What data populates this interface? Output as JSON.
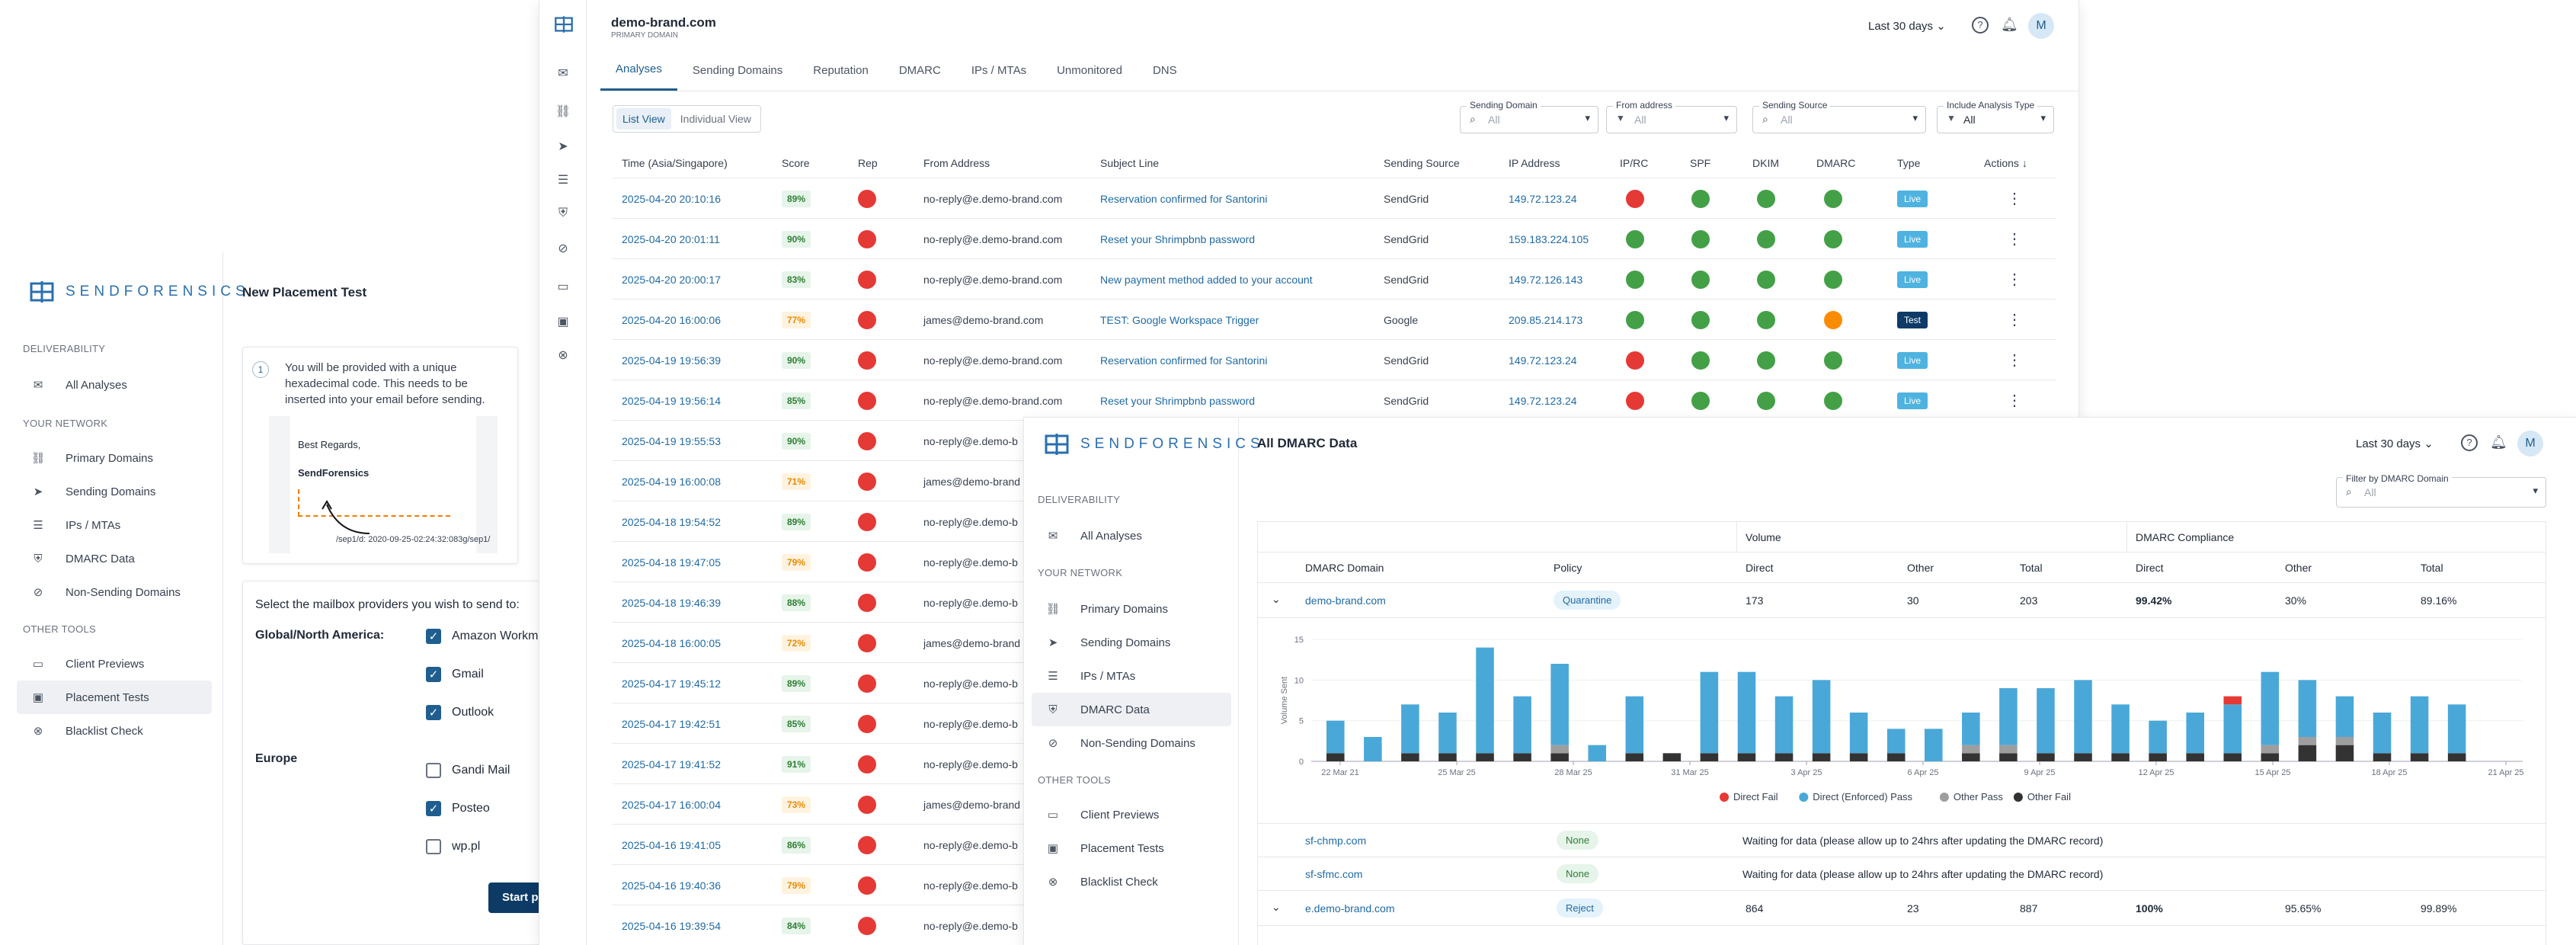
{
  "left_sidebar": {
    "brand": "SENDFORENSICS",
    "sections": [
      {
        "label": "DELIVERABILITY",
        "items": [
          {
            "label": "All Analyses",
            "icon": "mail-icon"
          }
        ]
      },
      {
        "label": "YOUR NETWORK",
        "items": [
          {
            "label": "Primary Domains",
            "icon": "network-icon"
          },
          {
            "label": "Sending Domains",
            "icon": "send-icon"
          },
          {
            "label": "IPs / MTAs",
            "icon": "list-icon"
          },
          {
            "label": "DMARC Data",
            "icon": "shield-icon"
          },
          {
            "label": "Non-Sending Domains",
            "icon": "send-off-icon"
          }
        ]
      },
      {
        "label": "OTHER TOOLS",
        "items": [
          {
            "label": "Client Previews",
            "icon": "monitor-icon"
          },
          {
            "label": "Placement Tests",
            "icon": "inbox-icon"
          },
          {
            "label": "Blacklist Check",
            "icon": "block-icon"
          }
        ]
      }
    ]
  },
  "placement": {
    "title": "New Placement Test",
    "step": "1",
    "instruction": "You will be provided with a unique hexadecimal code. This needs to be inserted into your email before sending.",
    "preview_regards": "Best Regards,",
    "preview_sender": "SendForensics",
    "preview_code": "/sep1/d: 2020-09-25-02:24:32:083g/sep1/",
    "select_label": "Select the mailbox providers you wish to send to:",
    "groups": [
      {
        "name": "Global/North America:",
        "providers": [
          {
            "label": "Amazon Workm",
            "checked": true
          },
          {
            "label": "Gmail",
            "checked": true
          },
          {
            "label": "Outlook",
            "checked": true
          }
        ]
      },
      {
        "name": "Europe",
        "providers": [
          {
            "label": "Gandi Mail",
            "checked": false
          },
          {
            "label": "Posteo",
            "checked": true
          },
          {
            "label": "wp.pl",
            "checked": false
          }
        ]
      }
    ],
    "start_button": "Start p"
  },
  "analyses": {
    "domain": "demo-brand.com",
    "domain_sub": "PRIMARY DOMAIN",
    "range": "Last 30 days",
    "avatar": "M",
    "tabs": [
      "Analyses",
      "Sending Domains",
      "Reputation",
      "DMARC",
      "IPs / MTAs",
      "Unmonitored",
      "DNS"
    ],
    "views": [
      "List View",
      "Individual View"
    ],
    "filters": [
      {
        "label": "Sending Domain",
        "value": "All"
      },
      {
        "label": "From address",
        "value": "All"
      },
      {
        "label": "Sending Source",
        "value": "All"
      },
      {
        "label": "Include Analysis Type",
        "value": "All"
      }
    ],
    "columns": [
      "Time (Asia/Singapore)",
      "Score",
      "Rep",
      "From Address",
      "Subject Line",
      "Sending Source",
      "IP Address",
      "IP/RC",
      "SPF",
      "DKIM",
      "DMARC",
      "Type",
      "Actions"
    ],
    "rows": [
      {
        "time": "2025-04-20 20:10:16",
        "score": "89%",
        "from": "no-reply@e.demo-brand.com",
        "subject": "Reservation confirmed for Santorini",
        "source": "SendGrid",
        "ip": "149.72.123.24",
        "iprc": "red",
        "spf": "grn",
        "dkim": "grn",
        "dmarc": "grn",
        "type": "Live"
      },
      {
        "time": "2025-04-20 20:01:11",
        "score": "90%",
        "from": "no-reply@e.demo-brand.com",
        "subject": "Reset your Shrimpbnb password",
        "source": "SendGrid",
        "ip": "159.183.224.105",
        "iprc": "grn",
        "spf": "grn",
        "dkim": "grn",
        "dmarc": "grn",
        "type": "Live"
      },
      {
        "time": "2025-04-20 20:00:17",
        "score": "83%",
        "from": "no-reply@e.demo-brand.com",
        "subject": "New payment method added to your account",
        "source": "SendGrid",
        "ip": "149.72.126.143",
        "iprc": "grn",
        "spf": "grn",
        "dkim": "grn",
        "dmarc": "grn",
        "type": "Live"
      },
      {
        "time": "2025-04-20 16:00:06",
        "score": "77%",
        "from": "james@demo-brand.com",
        "subject": "TEST: Google Workspace Trigger",
        "source": "Google",
        "ip": "209.85.214.173",
        "iprc": "grn",
        "spf": "grn",
        "dkim": "grn",
        "dmarc": "org",
        "type": "Test"
      },
      {
        "time": "2025-04-19 19:56:39",
        "score": "90%",
        "from": "no-reply@e.demo-brand.com",
        "subject": "Reservation confirmed for Santorini",
        "source": "SendGrid",
        "ip": "149.72.123.24",
        "iprc": "red",
        "spf": "grn",
        "dkim": "grn",
        "dmarc": "grn",
        "type": "Live"
      },
      {
        "time": "2025-04-19 19:56:14",
        "score": "85%",
        "from": "no-reply@e.demo-brand.com",
        "subject": "Reset your Shrimpbnb password",
        "source": "SendGrid",
        "ip": "149.72.123.24",
        "iprc": "red",
        "spf": "grn",
        "dkim": "grn",
        "dmarc": "grn",
        "type": "Live"
      },
      {
        "time": "2025-04-19 19:55:53",
        "score": "90%",
        "from": "no-reply@e.demo-b"
      },
      {
        "time": "2025-04-19 16:00:08",
        "score": "71%",
        "from": "james@demo-brand"
      },
      {
        "time": "2025-04-18 19:54:52",
        "score": "89%",
        "from": "no-reply@e.demo-b"
      },
      {
        "time": "2025-04-18 19:47:05",
        "score": "79%",
        "from": "no-reply@e.demo-b"
      },
      {
        "time": "2025-04-18 19:46:39",
        "score": "88%",
        "from": "no-reply@e.demo-b"
      },
      {
        "time": "2025-04-18 16:00:05",
        "score": "72%",
        "from": "james@demo-brand"
      },
      {
        "time": "2025-04-17 19:45:12",
        "score": "89%",
        "from": "no-reply@e.demo-b"
      },
      {
        "time": "2025-04-17 19:42:51",
        "score": "85%",
        "from": "no-reply@e.demo-b"
      },
      {
        "time": "2025-04-17 19:41:52",
        "score": "91%",
        "from": "no-reply@e.demo-b"
      },
      {
        "time": "2025-04-17 16:00:04",
        "score": "73%",
        "from": "james@demo-brand"
      },
      {
        "time": "2025-04-16 19:41:05",
        "score": "86%",
        "from": "no-reply@e.demo-b"
      },
      {
        "time": "2025-04-16 19:40:36",
        "score": "79%",
        "from": "no-reply@e.demo-b"
      },
      {
        "time": "2025-04-16 19:39:54",
        "score": "84%",
        "from": "no-reply@e.demo-b"
      }
    ]
  },
  "dmarc": {
    "brand": "SENDFORENSICS",
    "title": "All DMARC Data",
    "range": "Last 30 days",
    "avatar": "M",
    "filter_label": "Filter by DMARC Domain",
    "filter_value": "All",
    "group_volume": "Volume",
    "group_compliance": "DMARC Compliance",
    "columns": [
      "DMARC Domain",
      "Policy",
      "Direct",
      "Other",
      "Total",
      "Direct",
      "Other",
      "Total"
    ],
    "rows": [
      {
        "domain": "demo-brand.com",
        "policy": "Quarantine",
        "v_direct": "173",
        "v_other": "30",
        "v_total": "203",
        "c_direct": "99.42%",
        "c_other": "30%",
        "c_total": "89.16%"
      },
      {
        "domain": "sf-chmp.com",
        "policy": "None",
        "message": "Waiting for data (please allow up to 24hrs after updating the DMARC record)"
      },
      {
        "domain": "sf-sfmc.com",
        "policy": "None",
        "message": "Waiting for data (please allow up to 24hrs after updating the DMARC record)"
      },
      {
        "domain": "e.demo-brand.com",
        "policy": "Reject",
        "v_direct": "864",
        "v_other": "23",
        "v_total": "887",
        "c_direct": "100%",
        "c_other": "95.65%",
        "c_total": "99.89%"
      }
    ]
  },
  "chart_data": {
    "type": "bar",
    "ylabel": "Volume Sent",
    "ylim": [
      0,
      15
    ],
    "yticks": [
      0,
      5,
      10,
      15
    ],
    "xticks": [
      "22 Mar 21",
      "25 Mar 25",
      "28 Mar 25",
      "31 Mar 25",
      "3 Apr 25",
      "6 Apr 25",
      "9 Apr 25",
      "12 Apr 25",
      "15 Apr 25",
      "18 Apr 25",
      "21 Apr 25"
    ],
    "series_colors": {
      "Direct Fail": "#e53935",
      "Direct (Enforced) Pass": "#4aa8d8",
      "Other Pass": "#9e9e9e",
      "Other Fail": "#333333"
    },
    "series": [
      {
        "name": "Other Fail",
        "values": [
          1,
          0,
          1,
          1,
          1,
          1,
          1,
          0,
          1,
          1,
          1,
          1,
          1,
          1,
          1,
          1,
          0,
          1,
          1,
          1,
          1,
          1,
          1,
          1,
          1,
          1,
          2,
          2,
          1,
          1,
          1,
          0
        ]
      },
      {
        "name": "Other Pass",
        "values": [
          0,
          0,
          0,
          0,
          0,
          0,
          1,
          0,
          0,
          0,
          0,
          0,
          0,
          0,
          0,
          0,
          0,
          1,
          1,
          0,
          0,
          0,
          0,
          0,
          0,
          1,
          1,
          1,
          0,
          0,
          0,
          0
        ]
      },
      {
        "name": "Direct (Enforced) Pass",
        "values": [
          4,
          3,
          6,
          5,
          13,
          7,
          10,
          2,
          7,
          0,
          10,
          10,
          7,
          9,
          5,
          3,
          4,
          4,
          7,
          8,
          9,
          6,
          4,
          5,
          6,
          9,
          7,
          5,
          5,
          7,
          6,
          0
        ]
      },
      {
        "name": "Direct Fail",
        "values": [
          0,
          0,
          0,
          0,
          0,
          0,
          0,
          0,
          0,
          0,
          0,
          0,
          0,
          0,
          0,
          0,
          0,
          0,
          0,
          0,
          0,
          0,
          0,
          0,
          1,
          0,
          0,
          0,
          0,
          0,
          0,
          0
        ]
      }
    ],
    "legend": [
      "Direct Fail",
      "Direct (Enforced) Pass",
      "Other Pass",
      "Other Fail"
    ]
  }
}
